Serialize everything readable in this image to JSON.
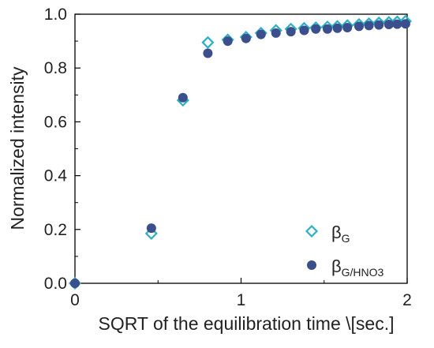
{
  "chart_data": {
    "type": "scatter",
    "xlabel": "SQRT of the equilibration time \\[sec.]",
    "ylabel": "Normalized intensity",
    "xlim": [
      0,
      2
    ],
    "ylim": [
      0,
      1
    ],
    "x_ticks": [
      0,
      1,
      2
    ],
    "y_ticks": [
      0.0,
      0.2,
      0.4,
      0.6,
      0.8,
      1.0
    ],
    "x_tick_labels": [
      "0",
      "1",
      "2"
    ],
    "y_tick_labels": [
      "0.0",
      "0.2",
      "0.4",
      "0.6",
      "0.8",
      "1.0"
    ],
    "grid": false,
    "legend_position": "bottom-right",
    "series": [
      {
        "name_main": "β",
        "name_sub": "G",
        "marker": "open-diamond",
        "color": "#2bb0c6",
        "points": [
          [
            0,
            0
          ],
          [
            0.46,
            0.185
          ],
          [
            0.65,
            0.68
          ],
          [
            0.8,
            0.895
          ],
          [
            0.92,
            0.905
          ],
          [
            1.03,
            0.915
          ],
          [
            1.12,
            0.93
          ],
          [
            1.21,
            0.94
          ],
          [
            1.3,
            0.945
          ],
          [
            1.38,
            0.948
          ],
          [
            1.45,
            0.95
          ],
          [
            1.52,
            0.953
          ],
          [
            1.58,
            0.955
          ],
          [
            1.64,
            0.958
          ],
          [
            1.71,
            0.962
          ],
          [
            1.77,
            0.965
          ],
          [
            1.83,
            0.968
          ],
          [
            1.89,
            0.97
          ],
          [
            1.94,
            0.972
          ],
          [
            1.99,
            0.974
          ]
        ]
      },
      {
        "name_main": "β",
        "name_sub": "G/HNO3",
        "marker": "filled-circle",
        "color": "#3a4f8c",
        "points": [
          [
            0,
            0
          ],
          [
            0.46,
            0.205
          ],
          [
            0.65,
            0.69
          ],
          [
            0.8,
            0.855
          ],
          [
            0.92,
            0.9
          ],
          [
            1.03,
            0.91
          ],
          [
            1.12,
            0.925
          ],
          [
            1.21,
            0.93
          ],
          [
            1.3,
            0.935
          ],
          [
            1.38,
            0.94
          ],
          [
            1.45,
            0.945
          ],
          [
            1.52,
            0.945
          ],
          [
            1.58,
            0.948
          ],
          [
            1.64,
            0.95
          ],
          [
            1.71,
            0.955
          ],
          [
            1.77,
            0.958
          ],
          [
            1.83,
            0.96
          ],
          [
            1.89,
            0.962
          ],
          [
            1.94,
            0.963
          ],
          [
            1.99,
            0.964
          ]
        ]
      }
    ]
  }
}
